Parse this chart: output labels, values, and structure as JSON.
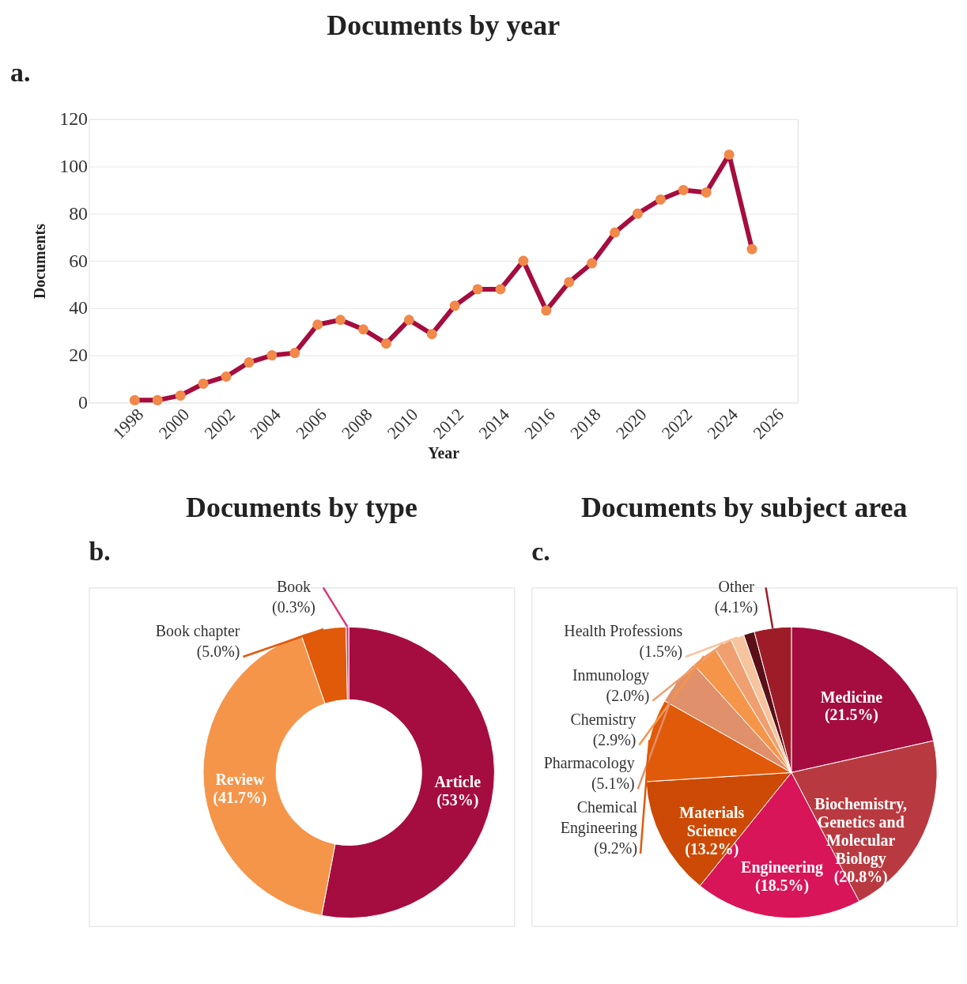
{
  "chart_data": [
    {
      "type": "line",
      "title": "Documents by year",
      "xlabel": "Year",
      "ylabel": "Documents",
      "annotations": [
        "a."
      ],
      "x": [
        1998,
        1999,
        2000,
        2001,
        2002,
        2003,
        2004,
        2005,
        2006,
        2007,
        2008,
        2009,
        2010,
        2011,
        2012,
        2013,
        2014,
        2015,
        2016,
        2017,
        2018,
        2019,
        2020,
        2021,
        2022,
        2023,
        2024,
        2025
      ],
      "series": [
        {
          "color": "#a50d3f",
          "colors": [
            "#f0894a",
            "#f0894a",
            "#f0894a",
            "#f0894a",
            "#f0894a",
            "#f0894a",
            "#f0894a",
            "#f0894a",
            "#f0894a",
            "#f0894a",
            "#f0894a",
            "#f0894a",
            "#f0894a",
            "#f0894a",
            "#f0894a",
            "#f0894a",
            "#f0894a",
            "#f0894a",
            "#f0894a",
            "#f0894a",
            "#f0894a",
            "#f0894a",
            "#f0894a",
            "#f0894a",
            "#f0894a",
            "#f0894a",
            "#f0894a",
            "#f0894a"
          ],
          "values": [
            1,
            1,
            3,
            8,
            11,
            17,
            20,
            21,
            33,
            35,
            31,
            25,
            35,
            29,
            41,
            48,
            48,
            60,
            39,
            51,
            59,
            72,
            80,
            86,
            90,
            89,
            105,
            65
          ]
        }
      ],
      "xlim": [
        1996,
        2027
      ],
      "xticks": [
        1998,
        2000,
        2002,
        2004,
        2006,
        2008,
        2010,
        2012,
        2014,
        2016,
        2018,
        2020,
        2022,
        2024,
        2026
      ],
      "ylim": [
        0,
        120
      ],
      "yticks": [
        0,
        20,
        40,
        60,
        80,
        100,
        120
      ],
      "grid": "y",
      "marker": "circle",
      "line_style": "solid",
      "legend": false
    },
    {
      "type": "donut",
      "title": "Documents by type",
      "annotations": [
        "b."
      ],
      "categories": [
        "Article",
        "Review",
        "Book chapter",
        "Book"
      ],
      "values": [
        53,
        41.7,
        5.0,
        0.3
      ],
      "value_labels": [
        "(53%)",
        "(41.7%)",
        "(5.0%)",
        "(0.3%)"
      ],
      "colors": [
        "#a50d40",
        "#f5954a",
        "#e05a0a",
        "#d63a7a"
      ],
      "legend": false
    },
    {
      "type": "pie",
      "title": "Documents by subject area",
      "annotations": [
        "c."
      ],
      "categories": [
        "Medicine",
        "Biochemistry,\nGenetics and\nMolecular\nBiology",
        "Engineering",
        "Materials\nScience",
        "Chemical\nEngineering",
        "Pharmacology",
        "Chemistry",
        "Inmunology",
        "Health Professions",
        null,
        "Other"
      ],
      "values": [
        21.5,
        20.8,
        18.5,
        13.2,
        9.2,
        5.1,
        2.9,
        2.0,
        1.5,
        1.2,
        4.1
      ],
      "value_labels": [
        "(21.5%)",
        "(20.8%)",
        "(18.5%)",
        "(13.2%)",
        "(9.2%)",
        "(5.1%)",
        "(2.9%)",
        "(2.0%)",
        "(1.5%)",
        null,
        "(4.1%)"
      ],
      "colors": [
        "#a50d40",
        "#b83a40",
        "#d81558",
        "#cc4a06",
        "#e05a0a",
        "#e0906a",
        "#f5954a",
        "#f0a070",
        "#f7c4a0",
        "#5a1018",
        "#9e1c28"
      ],
      "legend": false
    }
  ]
}
